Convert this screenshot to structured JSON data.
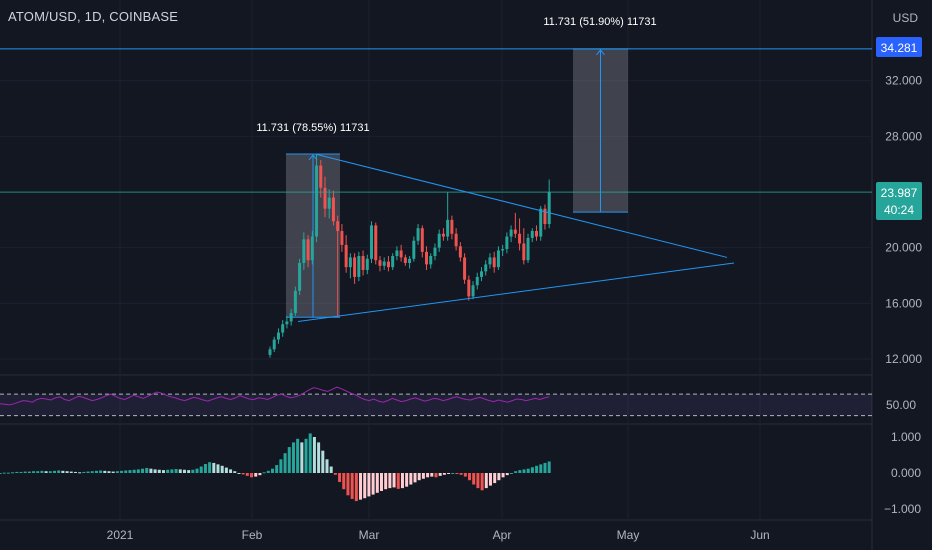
{
  "header": {
    "symbol": "ATOM/USD, 1D, COINBASE",
    "currency": "USD"
  },
  "colors": {
    "background": "#131722",
    "up": "#26a69a",
    "down": "#ef5350",
    "trendline": "#2196f3",
    "rsi": "#9c27b0",
    "hist_up_light": "#b2dfdb",
    "hist_down_light": "#ffcdd2"
  },
  "badges": {
    "target_price": "34.281",
    "last_price": "23.987",
    "countdown": "40:24"
  },
  "annotations": {
    "measure_left": "11.731 (78.55%) 11731",
    "measure_right": "11.731 (51.90%) 11731"
  },
  "chart_data": [
    {
      "type": "candlestick",
      "title": "ATOM/USD, 1D, COINBASE",
      "ylim": [
        11.5,
        36.5
      ],
      "y_ticks": [
        "12.000",
        "16.000",
        "20.000",
        "24.000",
        "28.000",
        "32.000"
      ],
      "x_ticks": [
        "2021",
        "Feb",
        "Mar",
        "Apr",
        "May",
        "Jun"
      ],
      "candles": [
        [
          12.3,
          12.9,
          12.1,
          12.7
        ],
        [
          12.7,
          13.6,
          12.5,
          13.4
        ],
        [
          13.4,
          14.2,
          13.1,
          13.9
        ],
        [
          13.9,
          14.8,
          13.6,
          14.5
        ],
        [
          14.5,
          15.1,
          14.2,
          14.7
        ],
        [
          14.7,
          15.6,
          14.4,
          15.3
        ],
        [
          15.3,
          17.2,
          15.1,
          16.9
        ],
        [
          16.9,
          19.2,
          16.6,
          18.9
        ],
        [
          18.9,
          21.1,
          18.4,
          20.6
        ],
        [
          20.6,
          20.9,
          18.6,
          19.1
        ],
        [
          19.1,
          21.2,
          18.8,
          20.8
        ],
        [
          20.8,
          26.7,
          20.4,
          25.9
        ],
        [
          25.9,
          26.3,
          23.6,
          24.3
        ],
        [
          24.3,
          25.1,
          22.2,
          22.8
        ],
        [
          22.8,
          24.2,
          22.1,
          23.6
        ],
        [
          23.6,
          24.1,
          21.6,
          21.9
        ],
        [
          21.9,
          22.3,
          15.0,
          21.2
        ],
        [
          21.2,
          21.7,
          19.7,
          20.2
        ],
        [
          20.2,
          20.9,
          18.2,
          18.6
        ],
        [
          18.6,
          19.6,
          17.8,
          19.3
        ],
        [
          19.3,
          19.6,
          17.4,
          17.9
        ],
        [
          17.9,
          19.7,
          17.6,
          19.4
        ],
        [
          19.4,
          19.8,
          18.0,
          18.4
        ],
        [
          18.4,
          19.5,
          18.1,
          19.2
        ],
        [
          19.2,
          21.9,
          18.9,
          21.6
        ],
        [
          21.6,
          21.8,
          18.8,
          19.1
        ],
        [
          19.1,
          19.4,
          18.3,
          18.7
        ],
        [
          18.7,
          19.3,
          18.4,
          19.0
        ],
        [
          19.0,
          19.4,
          18.3,
          18.6
        ],
        [
          18.6,
          19.6,
          18.4,
          19.4
        ],
        [
          19.4,
          20.1,
          19.1,
          19.8
        ],
        [
          19.8,
          20.2,
          19.0,
          19.3
        ],
        [
          19.3,
          19.5,
          18.7,
          18.9
        ],
        [
          18.9,
          19.4,
          18.5,
          19.2
        ],
        [
          19.2,
          20.8,
          19.0,
          20.5
        ],
        [
          20.5,
          21.7,
          20.2,
          21.4
        ],
        [
          21.4,
          21.6,
          19.3,
          19.7
        ],
        [
          19.7,
          20.1,
          18.4,
          18.8
        ],
        [
          18.8,
          19.6,
          18.5,
          19.4
        ],
        [
          19.4,
          20.3,
          19.1,
          20.0
        ],
        [
          20.0,
          21.3,
          19.7,
          21.0
        ],
        [
          21.0,
          21.4,
          20.5,
          20.8
        ],
        [
          20.8,
          24.0,
          20.5,
          22.0
        ],
        [
          22.0,
          22.3,
          20.6,
          21.0
        ],
        [
          21.0,
          21.4,
          19.8,
          20.1
        ],
        [
          20.1,
          20.4,
          19.0,
          19.3
        ],
        [
          19.3,
          19.6,
          17.4,
          17.7
        ],
        [
          17.7,
          18.0,
          16.2,
          16.5
        ],
        [
          16.5,
          17.6,
          16.3,
          17.3
        ],
        [
          17.3,
          18.2,
          17.0,
          17.9
        ],
        [
          17.9,
          18.6,
          17.6,
          18.3
        ],
        [
          18.3,
          19.1,
          18.0,
          18.8
        ],
        [
          18.8,
          19.6,
          18.5,
          19.3
        ],
        [
          19.3,
          19.7,
          18.2,
          18.6
        ],
        [
          18.6,
          20.1,
          18.4,
          19.8
        ],
        [
          19.8,
          20.2,
          19.4,
          19.9
        ],
        [
          19.9,
          21.1,
          19.6,
          20.8
        ],
        [
          20.8,
          21.6,
          20.4,
          21.3
        ],
        [
          21.3,
          22.5,
          20.7,
          21.0
        ],
        [
          21.0,
          22.1,
          19.8,
          20.3
        ],
        [
          20.3,
          21.4,
          18.8,
          19.1
        ],
        [
          19.1,
          21.0,
          18.9,
          20.7
        ],
        [
          20.7,
          21.4,
          20.4,
          21.2
        ],
        [
          21.2,
          21.6,
          20.5,
          20.8
        ],
        [
          20.8,
          23.0,
          20.5,
          22.8
        ],
        [
          22.8,
          23.1,
          21.3,
          21.7
        ],
        [
          21.7,
          24.9,
          21.4,
          23.99
        ]
      ]
    },
    {
      "type": "line",
      "name": "RSI",
      "ylim": [
        20,
        100
      ],
      "y_ticks": [
        "50.00"
      ],
      "bands": [
        70,
        30
      ],
      "values": [
        52,
        51,
        50,
        52,
        55,
        58,
        57,
        55,
        60,
        62,
        61,
        59,
        63,
        65,
        60,
        58,
        62,
        66,
        64,
        61,
        58,
        60,
        63,
        67,
        70,
        66,
        62,
        60,
        64,
        68,
        65,
        62,
        66,
        70,
        74,
        72,
        68,
        65,
        63,
        60,
        58,
        61,
        64,
        62,
        59,
        57,
        60,
        63,
        65,
        62,
        60,
        63,
        67,
        64,
        61,
        60,
        63,
        62,
        60,
        64,
        68,
        70,
        66,
        63,
        65,
        68,
        73,
        78,
        82,
        80,
        77,
        75,
        79,
        83,
        80,
        76,
        72,
        69,
        64,
        60,
        58,
        61,
        57,
        55,
        58,
        62,
        59,
        56,
        58,
        61,
        63,
        60,
        57,
        59,
        62,
        61,
        58,
        60,
        63,
        65,
        62,
        60,
        59,
        62,
        64,
        61,
        58,
        56,
        59,
        57,
        55,
        58,
        61,
        60,
        58,
        60,
        62,
        60,
        63,
        65
      ]
    },
    {
      "type": "bar",
      "name": "Histogram",
      "ylim": [
        -1.25,
        1.25
      ],
      "y_ticks": [
        "1.000",
        "0.000",
        "−1.000"
      ],
      "values": [
        0.0,
        0.01,
        0.01,
        0.02,
        0.03,
        0.03,
        0.04,
        0.04,
        0.05,
        0.05,
        0.06,
        0.05,
        0.05,
        0.06,
        0.07,
        0.06,
        0.05,
        0.04,
        0.03,
        0.02,
        0.03,
        0.04,
        0.05,
        0.06,
        0.07,
        0.06,
        0.05,
        0.04,
        0.05,
        0.06,
        0.07,
        0.08,
        0.09,
        0.1,
        0.12,
        0.14,
        0.12,
        0.1,
        0.09,
        0.08,
        0.09,
        0.1,
        0.11,
        0.1,
        0.09,
        0.08,
        0.09,
        0.12,
        0.18,
        0.25,
        0.3,
        0.28,
        0.24,
        0.2,
        0.15,
        0.1,
        0.05,
        0.0,
        -0.04,
        -0.08,
        -0.12,
        -0.1,
        -0.06,
        0.02,
        0.06,
        0.12,
        0.22,
        0.38,
        0.55,
        0.72,
        0.85,
        0.95,
        0.85,
        0.95,
        1.1,
        1.0,
        0.85,
        0.62,
        0.38,
        0.18,
        -0.05,
        -0.25,
        -0.45,
        -0.62,
        -0.72,
        -0.78,
        -0.74,
        -0.7,
        -0.65,
        -0.6,
        -0.55,
        -0.5,
        -0.45,
        -0.42,
        -0.4,
        -0.44,
        -0.42,
        -0.38,
        -0.32,
        -0.26,
        -0.2,
        -0.16,
        -0.12,
        -0.1,
        -0.12,
        -0.08,
        -0.05,
        -0.02,
        0.0,
        -0.02,
        -0.05,
        -0.1,
        -0.2,
        -0.32,
        -0.42,
        -0.48,
        -0.42,
        -0.35,
        -0.28,
        -0.2,
        -0.12,
        -0.06,
        0.0,
        0.05,
        0.08,
        0.1,
        0.12,
        0.16,
        0.2,
        0.24,
        0.28,
        0.32
      ]
    }
  ]
}
